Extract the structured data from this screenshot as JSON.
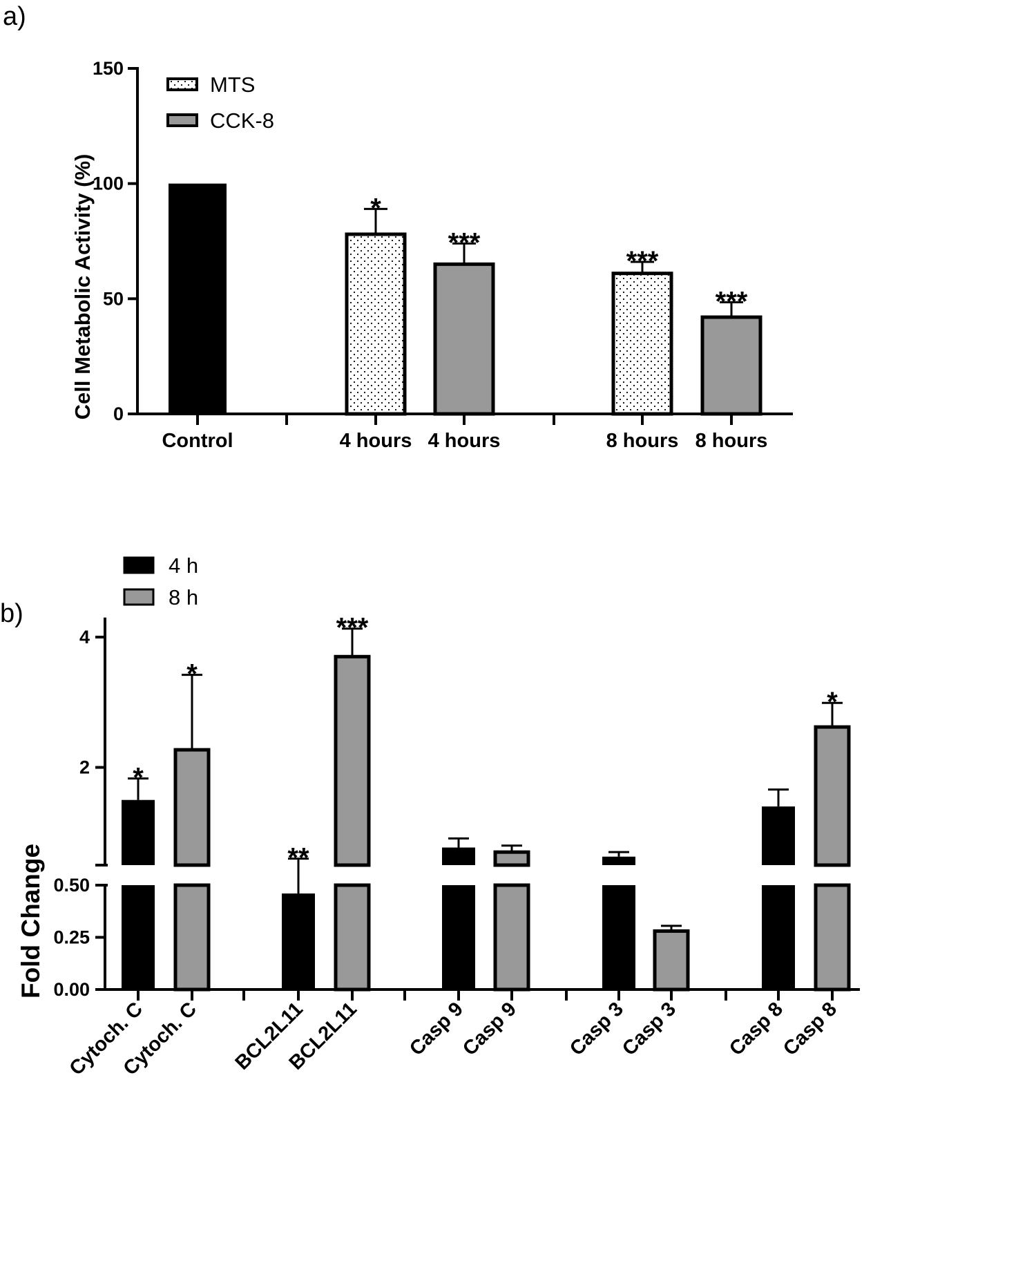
{
  "chart_data": [
    {
      "panel_label": "a)",
      "type": "bar",
      "ylabel": "Cell Metabolic Activity (%)",
      "ylim": [
        0,
        150
      ],
      "yticks": [
        0,
        50,
        100,
        150
      ],
      "legend": {
        "placement": "top-left",
        "entries": [
          {
            "name": "MTS",
            "pattern": "dotted"
          },
          {
            "name": "CCK-8",
            "pattern": "solid-gray"
          }
        ]
      },
      "bars": [
        {
          "label": "Control",
          "value": 100,
          "error": 0,
          "series": "Control",
          "sig": ""
        },
        {
          "label": "4 hours",
          "value": 78,
          "error": 11,
          "series": "MTS",
          "sig": "*"
        },
        {
          "label": "4 hours",
          "value": 65,
          "error": 9,
          "series": "CCK-8",
          "sig": "***"
        },
        {
          "label": "8 hours",
          "value": 61,
          "error": 5,
          "series": "MTS",
          "sig": "***"
        },
        {
          "label": "8 hours",
          "value": 42,
          "error": 6.5,
          "series": "CCK-8",
          "sig": "***"
        }
      ]
    },
    {
      "panel_label": "b)",
      "type": "bar",
      "ylabel": "Fold Change",
      "y_axis_break": true,
      "ylim_lower": [
        0,
        0.5
      ],
      "yticks_lower": [
        "0.00",
        "0.25",
        "0.50"
      ],
      "ylim_upper": [
        0.5,
        4.3
      ],
      "yticks_upper": [
        "2",
        "4"
      ],
      "legend": {
        "placement": "top-left",
        "entries": [
          {
            "name": "4 h",
            "color": "#000000"
          },
          {
            "name": "8 h",
            "color": "#999999"
          }
        ]
      },
      "bars": [
        {
          "label": "Cytoch. C",
          "value": 1.5,
          "error": 0.33,
          "series": "4 h",
          "sig": "*"
        },
        {
          "label": "Cytoch. C",
          "value": 2.27,
          "error": 1.15,
          "series": "8 h",
          "sig": "*"
        },
        {
          "label": "BCL2L11",
          "value": 0.46,
          "error": 0.14,
          "series": "4 h",
          "sig": "**"
        },
        {
          "label": "BCL2L11",
          "value": 3.7,
          "error": 0.43,
          "series": "8 h",
          "sig": "***"
        },
        {
          "label": "Casp 9",
          "value": 0.77,
          "error": 0.14,
          "series": "4 h",
          "sig": ""
        },
        {
          "label": "Casp 9",
          "value": 0.7,
          "error": 0.1,
          "series": "8 h",
          "sig": ""
        },
        {
          "label": "Casp 3",
          "value": 0.63,
          "error": 0.07,
          "series": "4 h",
          "sig": ""
        },
        {
          "label": "Casp 3",
          "value": 0.28,
          "error": 0.025,
          "series": "8 h",
          "sig": ""
        },
        {
          "label": "Casp 8",
          "value": 1.4,
          "error": 0.26,
          "series": "4 h",
          "sig": ""
        },
        {
          "label": "Casp 8",
          "value": 2.62,
          "error": 0.37,
          "series": "8 h",
          "sig": "*"
        }
      ]
    }
  ]
}
